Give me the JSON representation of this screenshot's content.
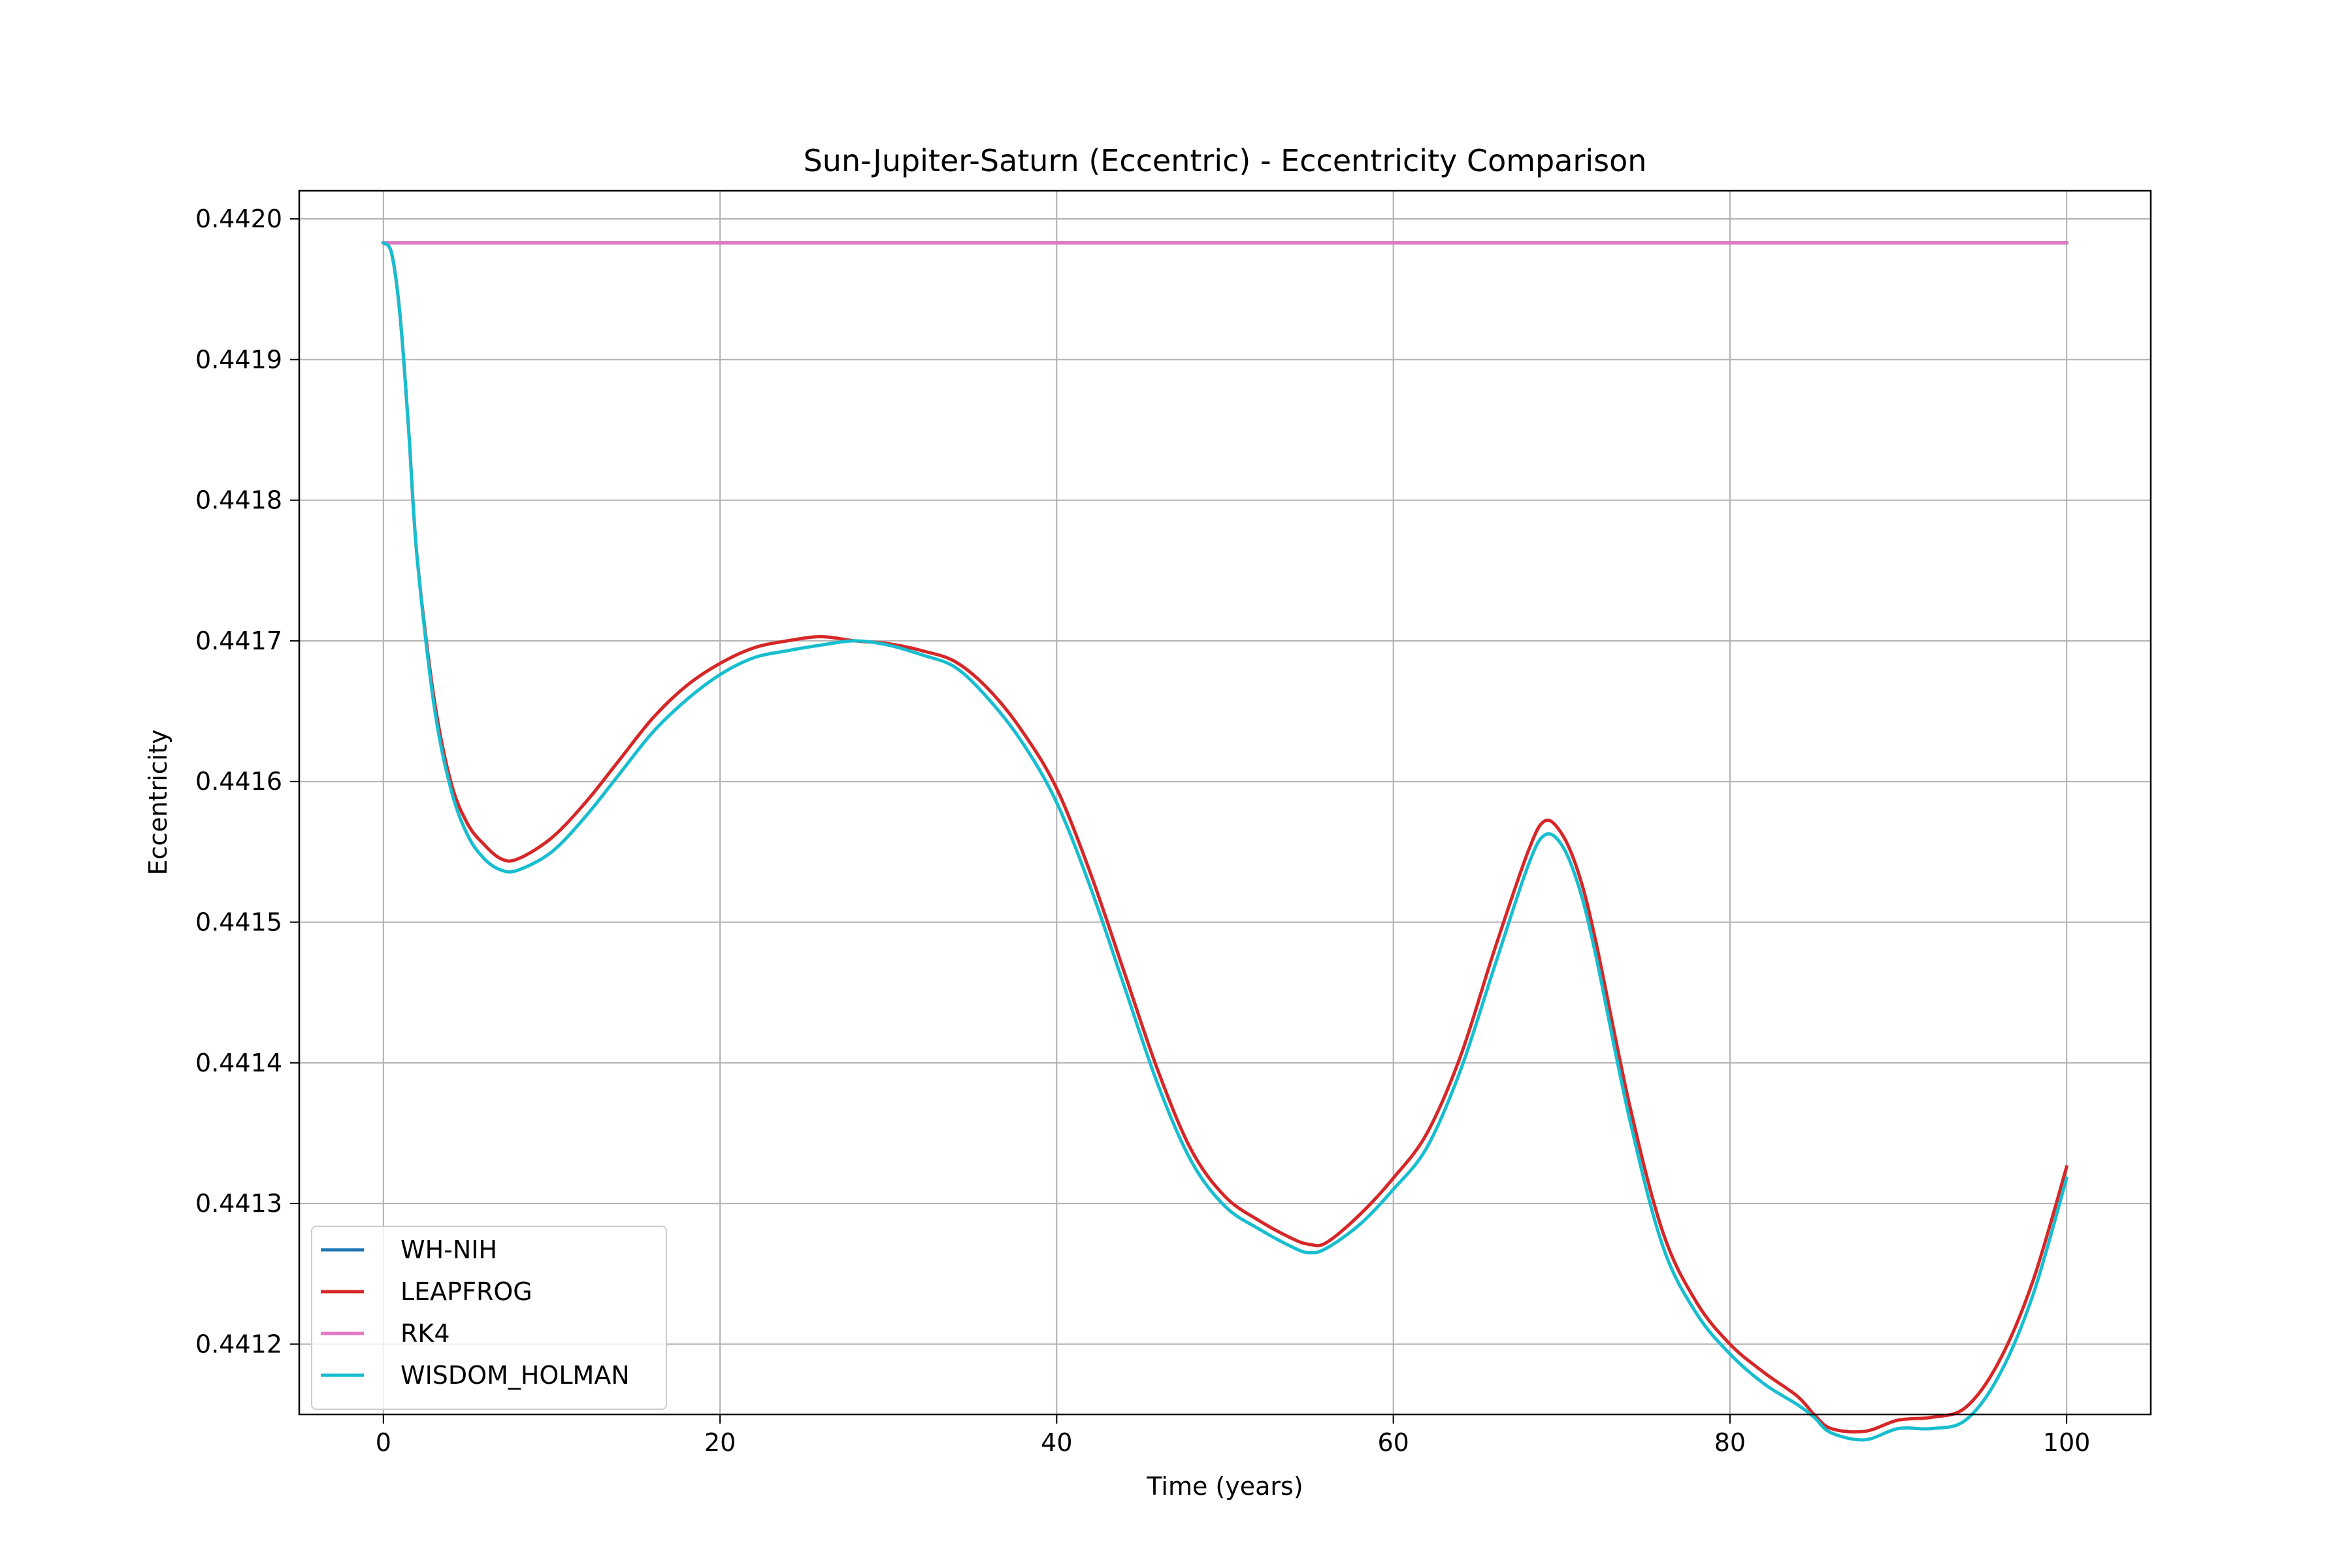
{
  "chart_data": {
    "type": "line",
    "title": "Sun-Jupiter-Saturn (Eccentric) - Eccentricity Comparison",
    "xlabel": "Time (years)",
    "ylabel": "Eccentricity",
    "xlim": [
      -5,
      105
    ],
    "ylim": [
      0.44115,
      0.44202
    ],
    "xticks": [
      0,
      20,
      40,
      60,
      80,
      100
    ],
    "yticks": [
      0.4412,
      0.4413,
      0.4414,
      0.4415,
      0.4416,
      0.4417,
      0.4418,
      0.4419,
      0.442
    ],
    "ytick_labels": [
      "0.4412",
      "0.4413",
      "0.4414",
      "0.4415",
      "0.4416",
      "0.4417",
      "0.4418",
      "0.4419",
      "0.4420"
    ],
    "grid": true,
    "legend_position": "lower-left",
    "series": [
      {
        "name": "WH-NIH",
        "color": "#1f77b4",
        "x": [
          0,
          100
        ],
        "y": [
          0.441983,
          0.441983
        ]
      },
      {
        "name": "LEAPFROG",
        "color": "#d62728",
        "x": [
          0,
          0.5,
          1,
          1.5,
          2,
          3,
          4,
          5,
          6,
          7,
          8,
          10,
          12,
          14,
          16,
          18,
          20,
          22,
          24,
          26,
          28,
          30,
          32,
          34,
          36,
          38,
          40,
          42,
          44,
          46,
          48,
          50,
          52,
          54,
          55,
          56,
          58,
          60,
          62,
          64,
          66,
          68,
          69,
          70,
          71,
          72,
          74,
          76,
          78,
          80,
          82,
          84,
          85,
          86,
          88,
          90,
          92,
          94,
          96,
          98,
          100
        ],
        "y": [
          0.441983,
          0.441975,
          0.44193,
          0.44185,
          0.44176,
          0.44166,
          0.4416,
          0.44157,
          0.441555,
          0.441545,
          0.441545,
          0.44156,
          0.441585,
          0.441615,
          0.441645,
          0.441668,
          0.441684,
          0.441695,
          0.4417,
          0.441703,
          0.4417,
          0.441698,
          0.441693,
          0.441685,
          0.441665,
          0.441635,
          0.441595,
          0.441535,
          0.441465,
          0.441395,
          0.441338,
          0.441305,
          0.441288,
          0.441275,
          0.441271,
          0.441272,
          0.441292,
          0.441318,
          0.44135,
          0.441405,
          0.44148,
          0.44155,
          0.441572,
          0.441563,
          0.441535,
          0.441488,
          0.441372,
          0.44128,
          0.44123,
          0.4412,
          0.44118,
          0.441163,
          0.44115,
          0.44114,
          0.441138,
          0.441146,
          0.441148,
          0.441155,
          0.441188,
          0.441245,
          0.441326
        ]
      },
      {
        "name": "RK4",
        "color": "#e377c2",
        "x": [
          0,
          100
        ],
        "y": [
          0.441983,
          0.441983
        ]
      },
      {
        "name": "WISDOM_HOLMAN",
        "color": "#17becf",
        "x": [
          0,
          0.5,
          1,
          1.5,
          2,
          3,
          4,
          5,
          6,
          7,
          8,
          10,
          12,
          14,
          16,
          18,
          20,
          22,
          24,
          26,
          28,
          30,
          32,
          34,
          36,
          38,
          40,
          42,
          44,
          46,
          48,
          50,
          52,
          54,
          55,
          56,
          58,
          60,
          62,
          64,
          66,
          68,
          69,
          70,
          71,
          72,
          74,
          76,
          78,
          80,
          82,
          84,
          85,
          86,
          88,
          90,
          92,
          94,
          96,
          98,
          100
        ],
        "y": [
          0.441983,
          0.441975,
          0.44193,
          0.44185,
          0.44176,
          0.441655,
          0.441595,
          0.441562,
          0.441545,
          0.441537,
          0.441537,
          0.44155,
          0.441575,
          0.441605,
          0.441635,
          0.441658,
          0.441676,
          0.441688,
          0.441693,
          0.441697,
          0.4417,
          0.441697,
          0.44169,
          0.441681,
          0.441658,
          0.441627,
          0.441585,
          0.441525,
          0.441455,
          0.441385,
          0.44133,
          0.441298,
          0.441282,
          0.441269,
          0.441265,
          0.441268,
          0.441285,
          0.44131,
          0.44134,
          0.441395,
          0.441468,
          0.44154,
          0.441562,
          0.441555,
          0.441526,
          0.441478,
          0.441362,
          0.44127,
          0.441222,
          0.441193,
          0.441172,
          0.441157,
          0.441148,
          0.441137,
          0.441132,
          0.44114,
          0.44114,
          0.441146,
          0.441178,
          0.441235,
          0.441318
        ]
      }
    ]
  }
}
